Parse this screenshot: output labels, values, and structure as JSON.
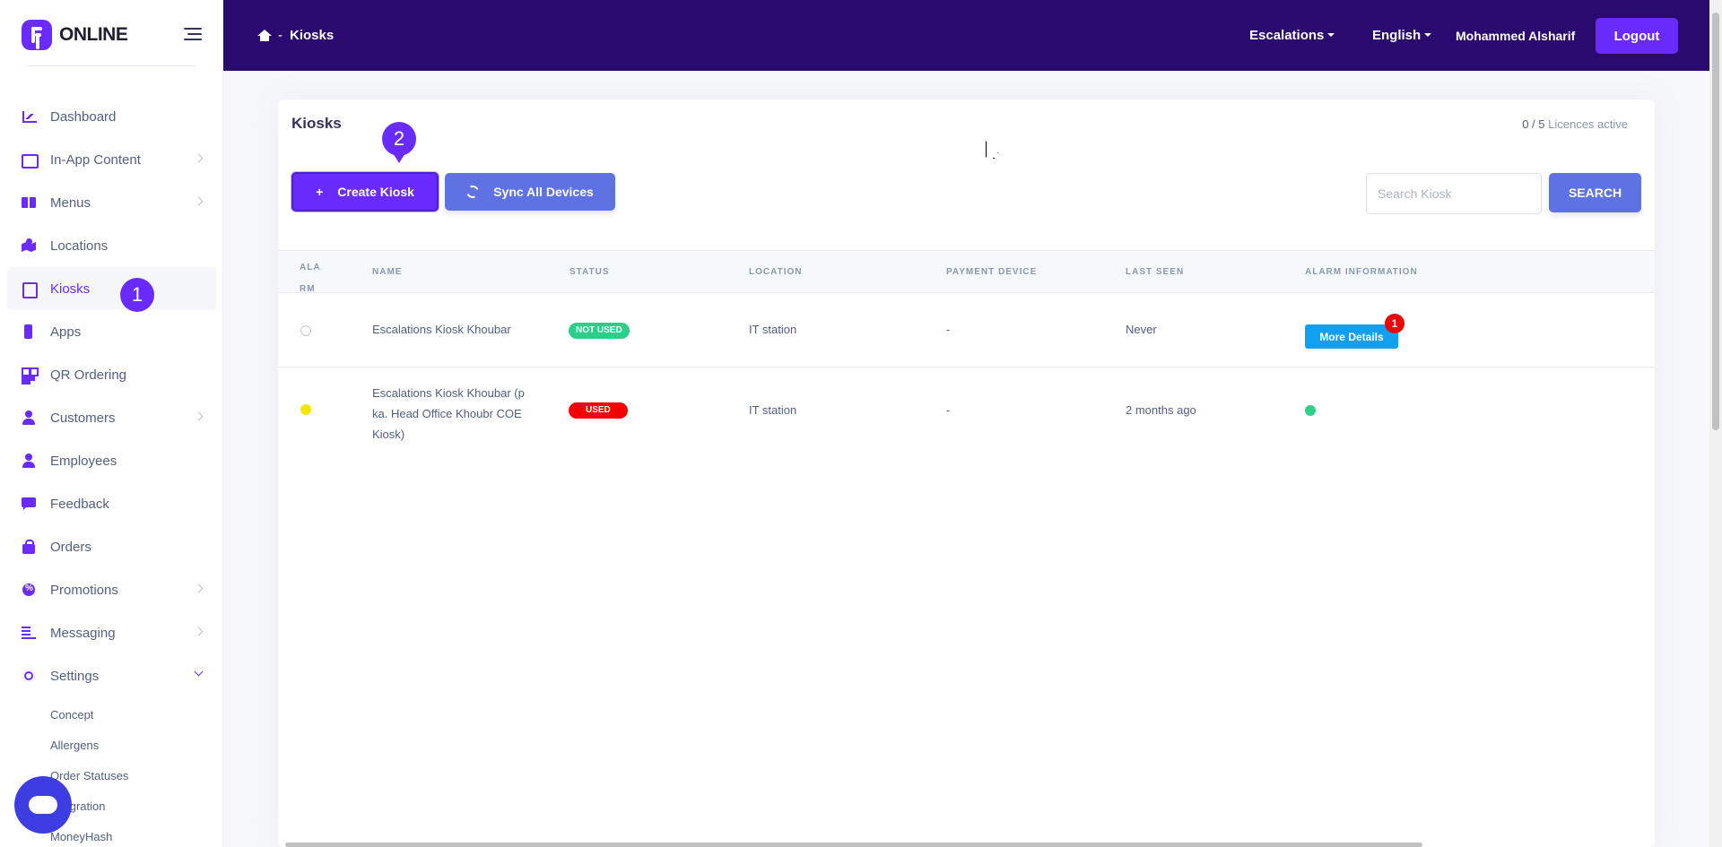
{
  "brand": {
    "name": "ONLINE"
  },
  "sidebar": {
    "items": [
      {
        "label": "Dashboard",
        "icon": "chart-area-icon",
        "has_children": false
      },
      {
        "label": "In-App Content",
        "icon": "images-icon",
        "has_children": true
      },
      {
        "label": "Menus",
        "icon": "book-open-icon",
        "has_children": true
      },
      {
        "label": "Locations",
        "icon": "map-marked-icon",
        "has_children": false
      },
      {
        "label": "Kiosks",
        "icon": "tablet-icon",
        "has_children": false,
        "active": true
      },
      {
        "label": "Apps",
        "icon": "mobile-icon",
        "has_children": false
      },
      {
        "label": "QR Ordering",
        "icon": "qrcode-icon",
        "has_children": false
      },
      {
        "label": "Customers",
        "icon": "user-icon",
        "has_children": true
      },
      {
        "label": "Employees",
        "icon": "user-icon",
        "has_children": false
      },
      {
        "label": "Feedback",
        "icon": "comment-icon",
        "has_children": false
      },
      {
        "label": "Orders",
        "icon": "shopping-bag-icon",
        "has_children": false
      },
      {
        "label": "Promotions",
        "icon": "percent-badge-icon",
        "has_children": true
      },
      {
        "label": "Messaging",
        "icon": "align-left-icon",
        "has_children": true
      },
      {
        "label": "Settings",
        "icon": "gear-icon",
        "has_children": true,
        "expanded": true
      }
    ],
    "settings_sub": [
      "Concept",
      "Allergens",
      "Order Statuses",
      "Integration",
      "MoneyHash"
    ]
  },
  "header": {
    "breadcrumb_sep": "-",
    "breadcrumb_current": "Kiosks",
    "escalations": "Escalations",
    "language": "English",
    "user": "Mohammed Alsharif",
    "logout": "Logout"
  },
  "card": {
    "title": "Kiosks",
    "licences_count": "0 / 5",
    "licences_label": "Licences active",
    "create_label": "Create Kiosk",
    "create_plus": "+",
    "sync_label": "Sync All Devices",
    "search_placeholder": "Search Kiosk",
    "search_button": "SEARCH"
  },
  "table": {
    "headers": {
      "alarm": "ALA RM",
      "name": "NAME",
      "status": "STATUS",
      "location": "LOCATION",
      "payment": "PAYMENT DEVICE",
      "last_seen": "LAST SEEN",
      "alarm_info": "ALARM INFORMATION"
    },
    "rows": [
      {
        "alarm": "none",
        "name": "Escalations Kiosk Khoubar",
        "status": "NOT USED",
        "status_color": "#2dce89",
        "location": "IT station",
        "payment": "-",
        "last_seen": "Never",
        "alarm_info_button": "More Details",
        "alarm_count": "1"
      },
      {
        "alarm": "yellow",
        "name_lines": [
          "Escalations Kiosk Khoubar (p",
          "ka. Head Office Khoubr COE",
          "Kiosk)"
        ],
        "status": "USED",
        "status_color": "#f50000",
        "location": "IT station",
        "payment": "-",
        "last_seen": "2 months ago",
        "alarm_info_status": "green"
      }
    ]
  },
  "steps": {
    "one": "1",
    "two": "2"
  },
  "colors": {
    "primary": "#6a2bff",
    "header_bg": "#2b0a6f",
    "info": "#5e72e4"
  }
}
